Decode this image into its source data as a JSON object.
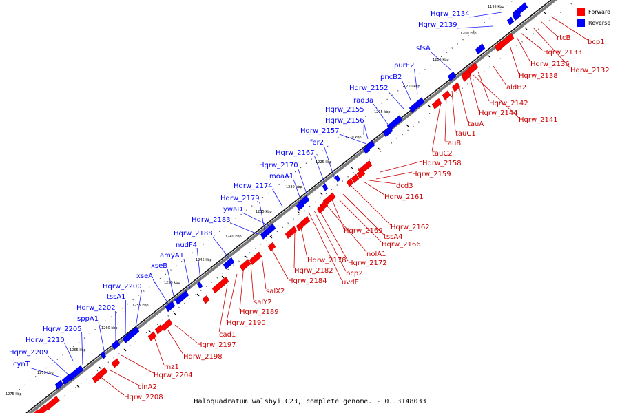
{
  "caption": "Haloquadratum walsbyi C23, complete genome. - 0..3148033",
  "legend": [
    {
      "label": "Forward",
      "color": "#ff0000"
    },
    {
      "label": "Reverse",
      "color": "#0000ff"
    }
  ],
  "colors": {
    "forward": "#ff0000",
    "reverse": "#0000ff",
    "forward_line": "#cc0000",
    "reverse_line": "#1a1aff"
  },
  "tick_labels": [
    "1195 kbp",
    "1200 kbp",
    "1205 kbp",
    "1210 kbp",
    "1215 kbp",
    "1220 kbp",
    "1225 kbp",
    "1230 kbp",
    "1235 kbp",
    "1240 kbp",
    "1245 kbp",
    "1250 kbp",
    "1255 kbp",
    "1260 kbp",
    "1265 kbp",
    "1270 kbp",
    "1275 kbp"
  ],
  "reverse_genes": [
    "Hqrw_2134",
    "Hqrw_2139",
    "sfsA",
    "purE2",
    "pncB2",
    "Hqrw_2152",
    "rad3a",
    "Hqrw_2155",
    "Hqrw_2156",
    "Hqrw_2157",
    "fer2",
    "Hqrw_2167",
    "Hqrw_2170",
    "moaA1",
    "Hqrw_2174",
    "Hqrw_2179",
    "ywaD",
    "Hqrw_2183",
    "Hqrw_2188",
    "nudF4",
    "amyA1",
    "xseB",
    "xseA",
    "Hqrw_2200",
    "tssA1",
    "Hqrw_2202",
    "sppA1",
    "Hqrw_2205",
    "Hqrw_2210",
    "Hqrw_2209",
    "cynT"
  ],
  "forward_genes": [
    "rtcB",
    "bcp1",
    "Hqrw_2133",
    "Hqrw_2136",
    "Hqrw_2132",
    "Hqrw_2138",
    "aldH2",
    "Hqrw_2142",
    "Hqrw_2144",
    "Hqrw_2141",
    "tauA",
    "tauC1",
    "tauB",
    "tauC2",
    "Hqrw_2158",
    "Hqrw_2159",
    "dcd3",
    "Hqrw_2161",
    "Hqrw_2162",
    "tssA4",
    "Hqrw_2169",
    "Hqrw_2166",
    "nolA1",
    "Hqrw_2178",
    "Hqrw_2172",
    "bcp2",
    "Hqrw_2182",
    "uvdE",
    "Hqrw_2184",
    "salX2",
    "salY2",
    "Hqrw_2189",
    "Hqrw_2190",
    "cad1",
    "Hqrw_2197",
    "Hqrw_2198",
    "rnz1",
    "Hqrw_2204",
    "cinA2",
    "Hqrw_2208"
  ]
}
